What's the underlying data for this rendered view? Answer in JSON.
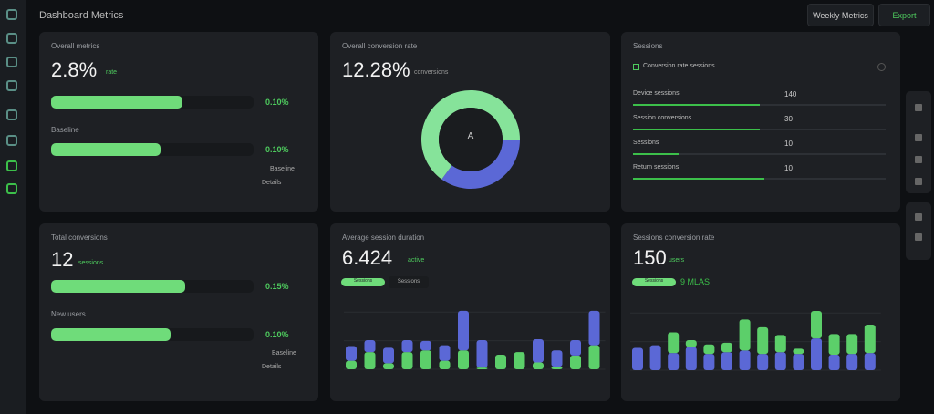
{
  "header": {
    "title": "Dashboard Metrics",
    "buttons": [
      "Weekly Metrics",
      "Export"
    ]
  },
  "sidebar": {
    "icons": [
      "grid-icon",
      "apps-icon",
      "chart-icon",
      "layers-icon",
      "settings-icon",
      "users-icon",
      "analytics-icon",
      "active-icon"
    ]
  },
  "card1": {
    "label": "Overall metrics",
    "value": "2.8%",
    "sub": "rate",
    "bars": [
      {
        "label": "",
        "pct": 65,
        "value": "0.10%"
      },
      {
        "label": "Baseline",
        "pct": 54,
        "value": "0.10%"
      }
    ],
    "note1": "Baseline",
    "note2": "Details"
  },
  "card2": {
    "label": "Overall conversion rate",
    "value": "12.28%",
    "sub": "conversions",
    "donut": {
      "center": "A",
      "segments": [
        {
          "value": 65,
          "color": "#86e39a"
        },
        {
          "value": 35,
          "color": "#5b68d6"
        }
      ]
    }
  },
  "card3": {
    "label": "Sessions",
    "item": "Conversion rate sessions",
    "rows": [
      {
        "label": "Device sessions",
        "value": "140",
        "pct": 50
      },
      {
        "label": "Session conversions",
        "value": "30",
        "pct": 50
      },
      {
        "label": "Sessions",
        "value": "10",
        "pct": 18
      },
      {
        "label": "Return sessions",
        "value": "10",
        "pct": 52
      }
    ]
  },
  "card4": {
    "label": "Total conversions",
    "value": "12",
    "sub": "sessions",
    "bars": [
      {
        "label": "",
        "pct": 66,
        "value": "0.15%"
      },
      {
        "label": "New users",
        "pct": 59,
        "value": "0.10%"
      }
    ],
    "note1": "Baseline",
    "note2": "Details"
  },
  "card5": {
    "label": "Average session duration",
    "value": "6.424",
    "sub": "active",
    "pill": "Sessions",
    "tag": "Sessions"
  },
  "card6": {
    "label": "Sessions conversion rate",
    "value": "150",
    "sub": "users",
    "pill": "Sessions",
    "tag": "9 MLAS"
  },
  "chart_data": [
    {
      "type": "bar",
      "stacked": true,
      "ylim": [
        0,
        70
      ],
      "series": [
        {
          "color": "#5ccf6a",
          "values": [
            10,
            20,
            7,
            20,
            22,
            10,
            22,
            2,
            17,
            20,
            8,
            3,
            16,
            28
          ]
        },
        {
          "color": "#5b68d6",
          "values": [
            17,
            14,
            18,
            14,
            11,
            18,
            46,
            32,
            0,
            0,
            27,
            19,
            18,
            40
          ]
        }
      ]
    },
    {
      "type": "bar",
      "stacked": true,
      "ylim": [
        0,
        70
      ],
      "series": [
        {
          "color": "#5b68d6",
          "values": [
            26,
            29,
            20,
            27,
            19,
            21,
            23,
            19,
            21,
            19,
            37,
            18,
            19,
            20
          ]
        },
        {
          "color": "#5ccf6a",
          "values": [
            0,
            0,
            24,
            8,
            11,
            11,
            36,
            31,
            20,
            6,
            32,
            24,
            23,
            33
          ]
        }
      ]
    }
  ]
}
